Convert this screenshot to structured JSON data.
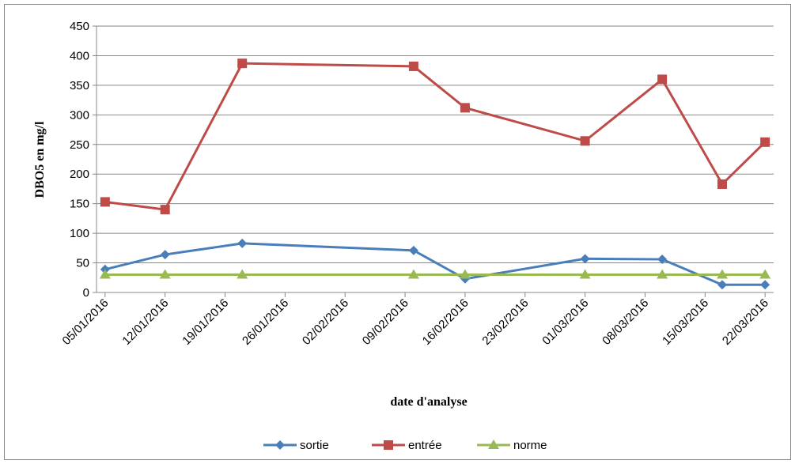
{
  "chart_data": {
    "type": "line",
    "y_label": "DBO5 en mg/l",
    "x_label": "date d'analyse",
    "x": [
      "05/01/2016",
      "12/01/2016",
      "21/01/2016",
      "10/02/2016",
      "16/02/2016",
      "01/03/2016",
      "10/03/2016",
      "17/03/2016",
      "22/03/2016"
    ],
    "series": [
      {
        "name": "sortie",
        "color": "#4a7ebb",
        "marker": "diamond",
        "values": [
          39,
          64,
          83,
          71,
          23,
          57,
          56,
          13,
          13
        ]
      },
      {
        "name": "entrée",
        "color": "#be4b48",
        "marker": "square",
        "values": [
          153,
          140,
          387,
          382,
          312,
          256,
          360,
          183,
          254
        ]
      },
      {
        "name": "norme",
        "color": "#98b954",
        "marker": "triangle",
        "values": [
          30,
          30,
          30,
          30,
          30,
          30,
          30,
          30,
          30
        ]
      }
    ],
    "xlim": [
      "04/01/2016",
      "23/03/2016"
    ],
    "xticks": [
      "05/01/2016",
      "12/01/2016",
      "19/01/2016",
      "26/01/2016",
      "02/02/2016",
      "09/02/2016",
      "16/02/2016",
      "23/02/2016",
      "01/03/2016",
      "08/03/2016",
      "15/03/2016",
      "22/03/2016"
    ],
    "ylim": [
      0,
      450
    ],
    "yticks": [
      0,
      50,
      100,
      150,
      200,
      250,
      300,
      350,
      400,
      450
    ],
    "grid": true,
    "legend": "bottom"
  }
}
